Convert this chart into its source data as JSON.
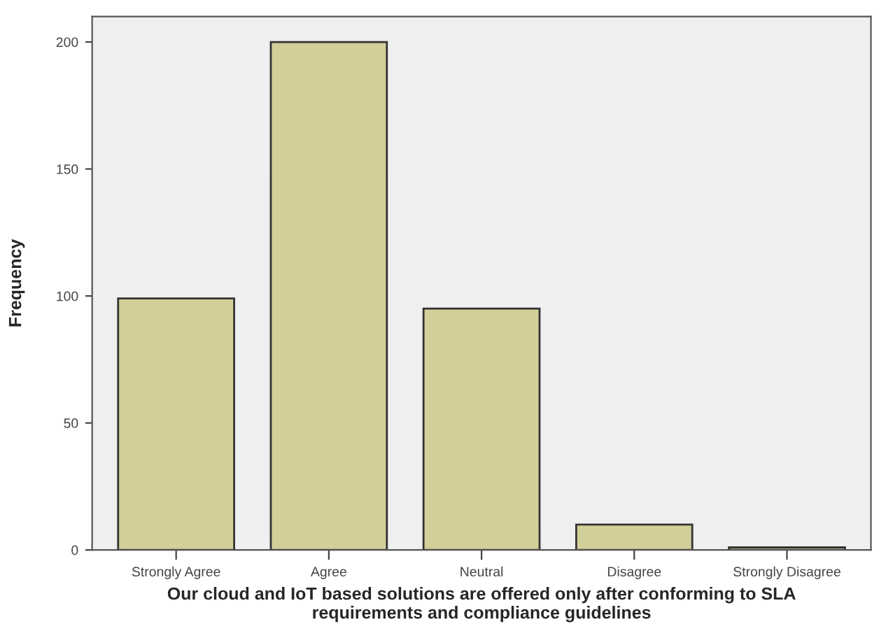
{
  "chart_data": {
    "type": "bar",
    "xlabel": "Our cloud and IoT based solutions are offered only after conforming to SLA\nrequirements and compliance guidelines",
    "ylabel": "Frequency",
    "categories": [
      "Strongly Agree",
      "Agree",
      "Neutral",
      "Disagree",
      "Strongly Disagree"
    ],
    "values": [
      99,
      200,
      95,
      10,
      1
    ],
    "color": "#d3cf98",
    "ylim": [
      0,
      210
    ],
    "yticks": [
      0,
      50,
      100,
      150,
      200
    ],
    "grid": false,
    "legend": false
  }
}
